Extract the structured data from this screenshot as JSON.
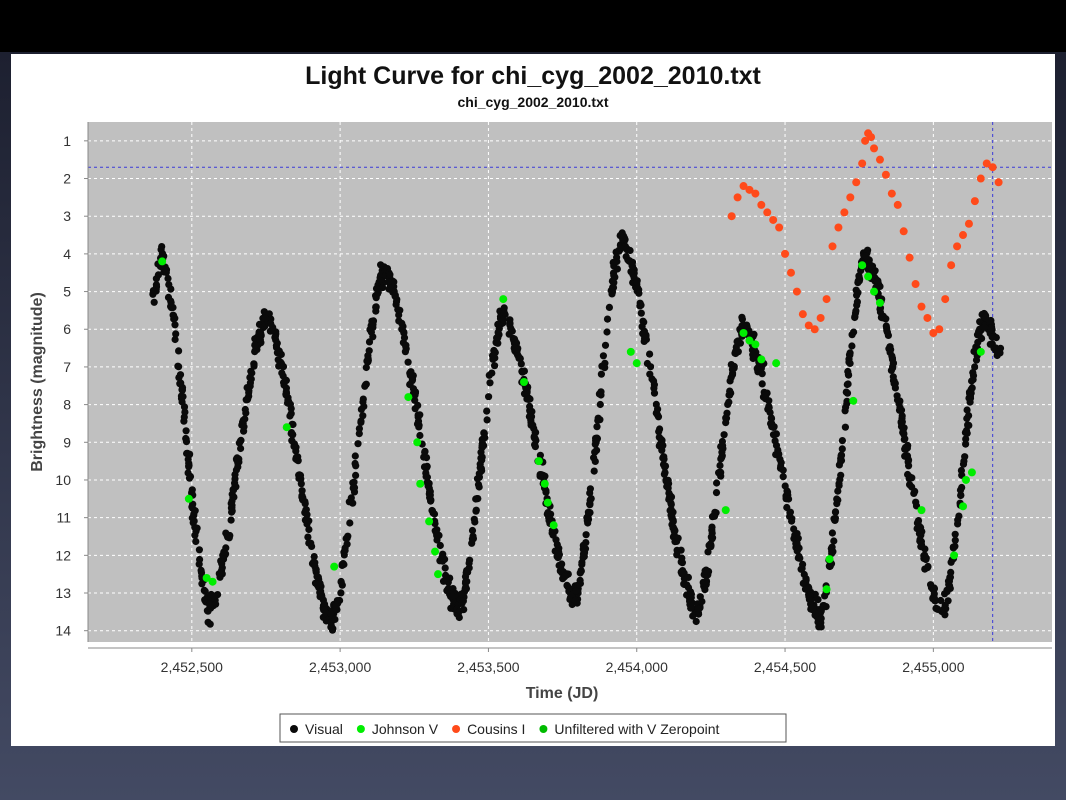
{
  "colors": {
    "visual": "#0a0a0a",
    "johnson_v": "#00ee00",
    "cousins_i": "#ff4a1a",
    "unfiltered_v_zeropoint": "#00bb00",
    "plot_background": "#c0c0c0",
    "gridline": "#ffffff",
    "crosshair": "#3a3ad8"
  },
  "chart_data": {
    "type": "scatter",
    "title": "Light Curve for chi_cyg_2002_2010.txt",
    "subtitle": "chi_cyg_2002_2010.txt",
    "xlabel": "Time (JD)",
    "ylabel": "Brightness (magnitude)",
    "xlim": [
      2452150,
      2455400
    ],
    "ylim": [
      0.5,
      14.3
    ],
    "y_inverted": true,
    "grid": true,
    "xticks": [
      2452500,
      2453000,
      2453500,
      2454000,
      2454500,
      2455000
    ],
    "xtick_labels": [
      "2,452,500",
      "2,453,000",
      "2,453,500",
      "2,454,000",
      "2,454,500",
      "2,455,000"
    ],
    "yticks": [
      1,
      2,
      3,
      4,
      5,
      6,
      7,
      8,
      9,
      10,
      11,
      12,
      13,
      14
    ],
    "ytick_labels": [
      "1",
      "2",
      "3",
      "4",
      "5",
      "6",
      "7",
      "8",
      "9",
      "10",
      "11",
      "12",
      "13",
      "14"
    ],
    "crosshair": {
      "x": 2455200,
      "y": 1.7
    },
    "legend_position": "bottom",
    "series": [
      {
        "name": "Visual",
        "key": "visual",
        "maxima": [
          [
            2452400,
            4.1
          ],
          [
            2452750,
            5.6
          ],
          [
            2453150,
            4.4
          ],
          [
            2453550,
            5.6
          ],
          [
            2453950,
            3.6
          ],
          [
            2454360,
            5.9
          ],
          [
            2454770,
            4.0
          ],
          [
            2455170,
            5.7
          ]
        ],
        "minima": [
          [
            2452560,
            13.5
          ],
          [
            2452970,
            13.8
          ],
          [
            2453400,
            13.5
          ],
          [
            2453790,
            13.2
          ],
          [
            2454200,
            13.6
          ],
          [
            2454620,
            13.7
          ],
          [
            2455030,
            13.6
          ]
        ],
        "start_point": [
          2452370,
          5.0
        ],
        "end_point": [
          2455230,
          6.7
        ],
        "scatter_half_width_mag": 0.45
      },
      {
        "name": "Johnson V",
        "key": "johnson_v",
        "values": [
          [
            2452400,
            4.2
          ],
          [
            2452490,
            10.5
          ],
          [
            2452550,
            12.6
          ],
          [
            2452570,
            12.7
          ],
          [
            2452820,
            8.6
          ],
          [
            2452980,
            12.3
          ],
          [
            2453230,
            7.8
          ],
          [
            2453260,
            9.0
          ],
          [
            2453270,
            10.1
          ],
          [
            2453300,
            11.1
          ],
          [
            2453320,
            11.9
          ],
          [
            2453330,
            12.5
          ],
          [
            2453550,
            5.2
          ],
          [
            2453620,
            7.4
          ],
          [
            2453670,
            9.5
          ],
          [
            2453690,
            10.1
          ],
          [
            2453700,
            10.6
          ],
          [
            2453720,
            11.2
          ],
          [
            2453980,
            6.6
          ],
          [
            2454000,
            6.9
          ],
          [
            2454300,
            10.8
          ],
          [
            2454360,
            6.1
          ],
          [
            2454380,
            6.3
          ],
          [
            2454400,
            6.4
          ],
          [
            2454420,
            6.8
          ],
          [
            2454470,
            6.9
          ],
          [
            2454640,
            12.9
          ],
          [
            2454650,
            12.1
          ],
          [
            2454730,
            7.9
          ],
          [
            2454760,
            4.3
          ],
          [
            2454780,
            4.6
          ],
          [
            2454800,
            5.0
          ],
          [
            2454820,
            5.3
          ],
          [
            2454960,
            10.8
          ],
          [
            2455070,
            12.0
          ],
          [
            2455100,
            10.7
          ],
          [
            2455110,
            10.0
          ],
          [
            2455130,
            9.8
          ],
          [
            2455160,
            6.6
          ]
        ]
      },
      {
        "name": "Cousins I",
        "key": "cousins_i",
        "values": [
          [
            2454320,
            3.0
          ],
          [
            2454340,
            2.5
          ],
          [
            2454360,
            2.2
          ],
          [
            2454380,
            2.3
          ],
          [
            2454400,
            2.4
          ],
          [
            2454420,
            2.7
          ],
          [
            2454440,
            2.9
          ],
          [
            2454460,
            3.1
          ],
          [
            2454480,
            3.3
          ],
          [
            2454500,
            4.0
          ],
          [
            2454520,
            4.5
          ],
          [
            2454540,
            5.0
          ],
          [
            2454560,
            5.6
          ],
          [
            2454580,
            5.9
          ],
          [
            2454600,
            6.0
          ],
          [
            2454620,
            5.7
          ],
          [
            2454640,
            5.2
          ],
          [
            2454660,
            3.8
          ],
          [
            2454680,
            3.3
          ],
          [
            2454700,
            2.9
          ],
          [
            2454720,
            2.5
          ],
          [
            2454740,
            2.1
          ],
          [
            2454760,
            1.6
          ],
          [
            2454770,
            1.0
          ],
          [
            2454780,
            0.8
          ],
          [
            2454790,
            0.9
          ],
          [
            2454800,
            1.2
          ],
          [
            2454820,
            1.5
          ],
          [
            2454840,
            1.9
          ],
          [
            2454860,
            2.4
          ],
          [
            2454880,
            2.7
          ],
          [
            2454900,
            3.4
          ],
          [
            2454920,
            4.1
          ],
          [
            2454940,
            4.8
          ],
          [
            2454960,
            5.4
          ],
          [
            2454980,
            5.7
          ],
          [
            2455000,
            6.1
          ],
          [
            2455020,
            6.0
          ],
          [
            2455040,
            5.2
          ],
          [
            2455060,
            4.3
          ],
          [
            2455080,
            3.8
          ],
          [
            2455100,
            3.5
          ],
          [
            2455120,
            3.2
          ],
          [
            2455140,
            2.6
          ],
          [
            2455160,
            2.0
          ],
          [
            2455180,
            1.6
          ],
          [
            2455200,
            1.7
          ],
          [
            2455220,
            2.1
          ]
        ]
      },
      {
        "name": "Unfiltered with V Zeropoint",
        "key": "unfiltered_v_zeropoint",
        "values": []
      }
    ]
  }
}
